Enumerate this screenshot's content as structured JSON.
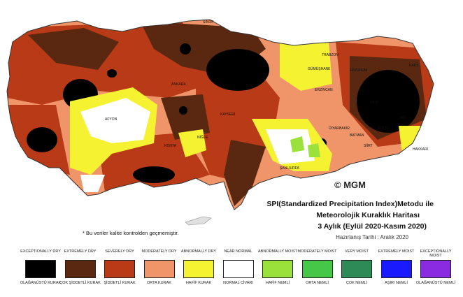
{
  "map": {
    "title_lines": [
      "SPI(Standardized Precipitation Index)Metodu ile",
      "Meteorolojik Kuraklık Haritası",
      "3 Aylık (Eylül 2020-Kasım 2020)",
      "Hazırlanış Tarihi : Aralık 2020"
    ],
    "watermark": "© MGM",
    "footnote": "* Bu veriler kalite kontrolden geçmemiştir."
  },
  "legend": [
    {
      "en": "EXCEPTIONALLY DRY",
      "tr": "OLAĞANÜSTÜ KURAK",
      "color": "#000000"
    },
    {
      "en": "EXTREMELY DRY",
      "tr": "ÇOK ŞİDDETLİ KURAK",
      "color": "#5a2810"
    },
    {
      "en": "SEVERELY DRY",
      "tr": "ŞİDDETLİ KURAK",
      "color": "#b83a16"
    },
    {
      "en": "MODERATELY DRY",
      "tr": "ORTA KURAK",
      "color": "#f0956a"
    },
    {
      "en": "ABNORMALLY DRY",
      "tr": "HAFİF KURAK",
      "color": "#f5f232"
    },
    {
      "en": "NEAR NORMAL",
      "tr": "NORMAL CİVARI",
      "color": "#ffffff"
    },
    {
      "en": "ABNORMALLY MOIST",
      "tr": "HAFİF NEMLİ",
      "color": "#9be13c"
    },
    {
      "en": "MODERATELY MOIST",
      "tr": "ORTA NEMLİ",
      "color": "#47c747"
    },
    {
      "en": "VERY MOIST",
      "tr": "ÇOK NEMLİ",
      "color": "#2e8b57"
    },
    {
      "en": "EXTREMELY MOIST",
      "tr": "AŞIRI NEMLİ",
      "color": "#1a1aff"
    },
    {
      "en": "EXCEPTIONALLY MOIST",
      "tr": "OLAĞANÜSTÜ NEMLİ",
      "color": "#8a2be2"
    }
  ],
  "cities": [
    "SİNOP",
    "KARS",
    "ERZURUM",
    "AFYON",
    "KONYA",
    "ANKARA",
    "ŞANLIURFA",
    "HAKKARİ",
    "MUŞ",
    "VAN",
    "TRABZON",
    "GÜMÜŞHANE",
    "NİĞDE",
    "ERZİNCAN",
    "BİTLİS",
    "BATMAN",
    "SİİRT",
    "KAYSERİ",
    "DİYARBAKIR"
  ]
}
